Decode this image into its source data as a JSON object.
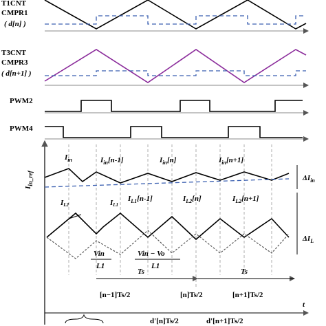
{
  "signals": {
    "t1cnt": "T1CNT",
    "cmpr1": "CMPR1",
    "d_n": "( d[n] )",
    "t3cnt": "T3CNT",
    "cmpr3": "CMPR3",
    "d_n1": "( d[n+1] )",
    "pwm2": "PWM2",
    "pwm4": "PWM4"
  },
  "currents": {
    "iin_ref": {
      "main": "I",
      "sub": "in_ref"
    },
    "iin": {
      "main": "I",
      "sub": "in"
    },
    "iin_nm1": {
      "main": "I",
      "sub": "in",
      "idx": "[n-1]"
    },
    "iin_n": {
      "main": "I",
      "sub": "in",
      "idx": "[n]"
    },
    "iin_np1": {
      "main": "I",
      "sub": "in",
      "idx": "[n+1]"
    },
    "delta_iin": {
      "main": "ΔI",
      "sub": "in"
    },
    "il2": {
      "main": "I",
      "sub": "L2"
    },
    "il1": {
      "main": "I",
      "sub": "L1"
    },
    "il1_nm1": {
      "main": "I",
      "sub": "L1",
      "idx": "[n-1]"
    },
    "il2_n": {
      "main": "I",
      "sub": "L2",
      "idx": "[n]"
    },
    "il2_np1": {
      "main": "I",
      "sub": "L2",
      "idx": "[n+1]"
    },
    "delta_il": {
      "main": "ΔI",
      "sub": "L"
    }
  },
  "slopes": {
    "rise": {
      "num": "Vin",
      "den": "L1"
    },
    "fall": {
      "num": "Vin − Vo",
      "den": "L1"
    }
  },
  "timing": {
    "ts_1": "Ts",
    "ts_2": "Ts",
    "t_nm1": "[n−1]Ts/2",
    "t_n": "[n]Ts/2",
    "t_np1": "[n+1]Ts/2",
    "d_n": "d'[n]Ts/2",
    "d_np1": "d'[n+1]Ts/2",
    "t": "t"
  }
}
